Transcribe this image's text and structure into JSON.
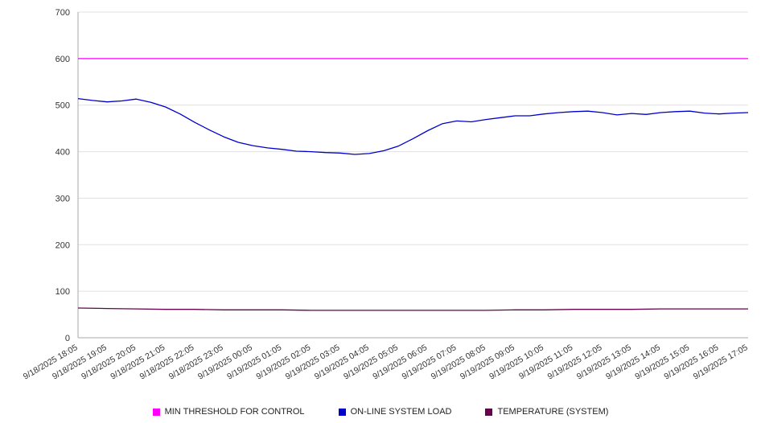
{
  "chart_data": {
    "type": "line",
    "title": "",
    "xlabel": "",
    "ylabel": "",
    "ylim": [
      0,
      700
    ],
    "ytick_step": 100,
    "grid": true,
    "legend_position": "bottom",
    "x_labels": [
      "9/18/2025 18:05",
      "9/18/2025 19:05",
      "9/18/2025 20:05",
      "9/18/2025 21:05",
      "9/18/2025 22:05",
      "9/18/2025 23:05",
      "9/19/2025 00:05",
      "9/19/2025 01:05",
      "9/19/2025 02:05",
      "9/19/2025 03:05",
      "9/19/2025 04:05",
      "9/19/2025 05:05",
      "9/19/2025 06:05",
      "9/19/2025 07:05",
      "9/19/2025 08:05",
      "9/19/2025 09:05",
      "9/19/2025 10:05",
      "9/19/2025 11:05",
      "9/19/2025 12:05",
      "9/19/2025 13:05",
      "9/19/2025 14:05",
      "9/19/2025 15:05",
      "9/19/2025 16:05",
      "9/19/2025 17:05"
    ],
    "series": [
      {
        "name": "MIN THRESHOLD FOR CONTROL",
        "color": "#ff00ff",
        "values": [
          600,
          600
        ]
      },
      {
        "name": "ON-LINE SYSTEM LOAD",
        "color": "#0000cc",
        "values": [
          514,
          510,
          507,
          509,
          513,
          506,
          496,
          481,
          463,
          447,
          432,
          420,
          413,
          408,
          405,
          401,
          400,
          398,
          397,
          394,
          396,
          402,
          412,
          428,
          445,
          460,
          466,
          464,
          469,
          473,
          477,
          477,
          481,
          484,
          486,
          487,
          484,
          479,
          482,
          480,
          484,
          486,
          487,
          483,
          481,
          483,
          484
        ]
      },
      {
        "name": "TEMPERATURE (SYSTEM)",
        "color": "#66004d",
        "values": [
          64,
          63,
          62,
          61,
          61,
          60,
          60,
          60,
          59,
          59,
          59,
          59,
          59,
          59,
          59,
          60,
          60,
          61,
          61,
          61,
          62,
          62,
          62,
          62
        ]
      }
    ]
  }
}
